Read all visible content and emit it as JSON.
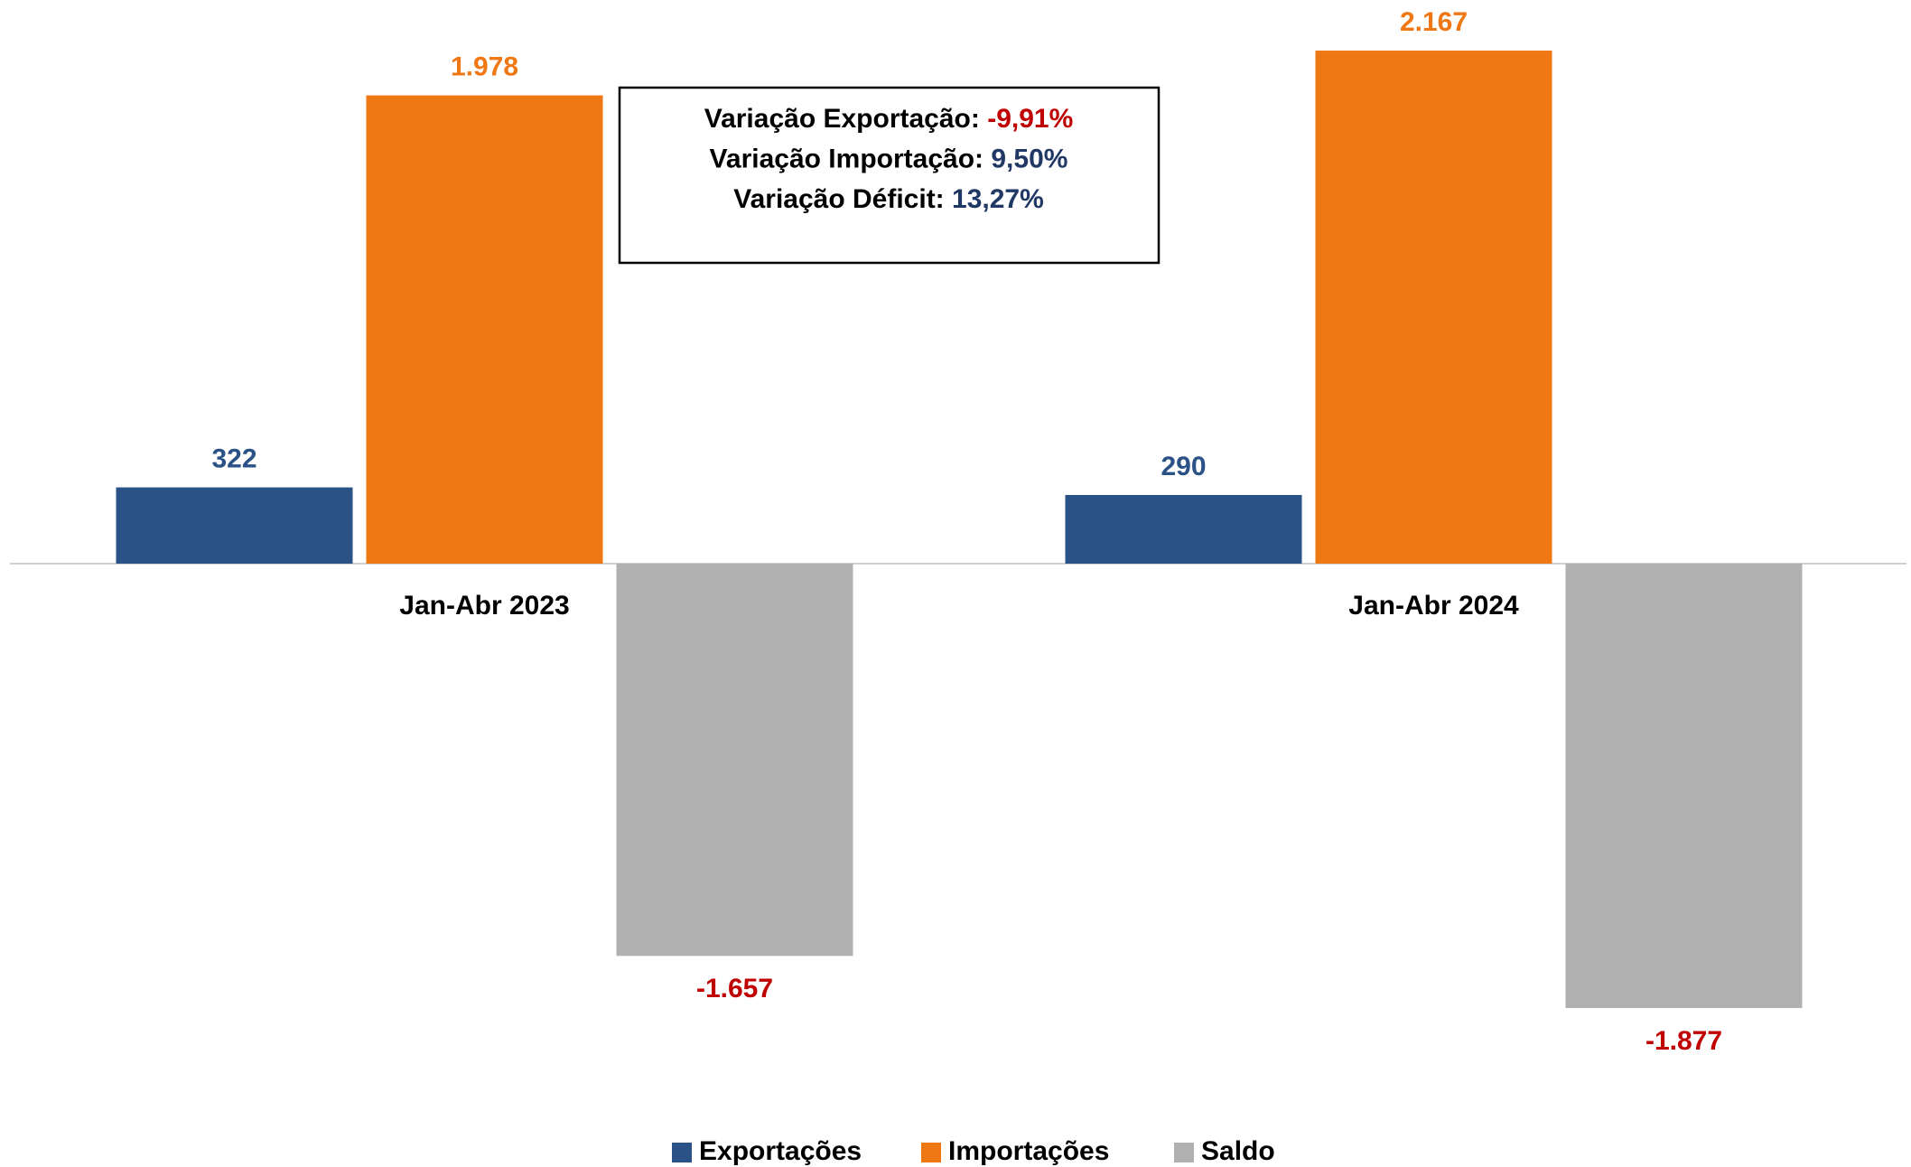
{
  "chart_data": {
    "type": "bar",
    "categories": [
      "Jan-Abr 2023",
      "Jan-Abr 2024"
    ],
    "series": [
      {
        "name": "Exportações",
        "color": "#2a5286",
        "label_color": "#2a5286",
        "values": [
          322,
          290
        ],
        "value_labels": [
          "322",
          "290"
        ]
      },
      {
        "name": "Importações",
        "color": "#f07814",
        "label_color": "#f07814",
        "values": [
          1978,
          2167
        ],
        "value_labels": [
          "1.978",
          "2.167"
        ]
      },
      {
        "name": "Saldo",
        "color": "#b0b0b0",
        "label_color": "#c00000",
        "values": [
          -1657,
          -1877
        ],
        "value_labels": [
          "-1.657",
          "-1.877"
        ]
      }
    ],
    "annotations": [
      {
        "text": "Variação Exportação:",
        "value": "-9,91%",
        "color": "#c00000"
      },
      {
        "text": "Variação Importação:",
        "value": "9,50%",
        "color": "#1f3864"
      },
      {
        "text": "Variação Déficit:",
        "value": "13,27%",
        "color": "#1f3864"
      }
    ],
    "legend": "bottom"
  }
}
